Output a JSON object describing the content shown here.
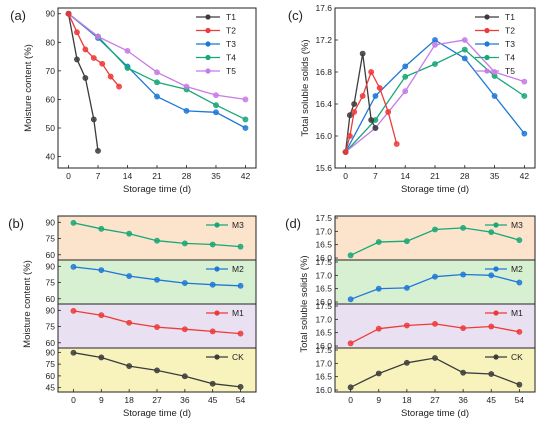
{
  "colors": {
    "T1": "#3c3c3c",
    "T2": "#ee3a3a",
    "T3": "#1e78d8",
    "T4": "#17a877",
    "T5": "#c77be8",
    "M3": "#17a877",
    "M2": "#1e78d8",
    "M1": "#ee3a3a",
    "CK": "#3c3c3c",
    "bgM3": "#fbe3cc",
    "bgM2": "#d8f0d2",
    "bgM1": "#e9e0f1",
    "bgCK": "#f8f3bd"
  },
  "chart_data": [
    {
      "id": "a",
      "panel_label": "(a)",
      "type": "line",
      "xlabel": "Storage time (d)",
      "ylabel": "Moisture content (%)",
      "xticks": [
        0,
        7,
        14,
        21,
        28,
        35,
        42
      ],
      "xlim": [
        -2.5,
        44.5
      ],
      "yticks": [
        40,
        50,
        60,
        70,
        80,
        90
      ],
      "ylim": [
        36,
        92
      ],
      "legend_position": "top-right",
      "series": [
        {
          "name": "T1",
          "x": [
            0,
            2,
            4,
            6,
            7
          ],
          "y": [
            90,
            74,
            67.5,
            53,
            42
          ]
        },
        {
          "name": "T2",
          "x": [
            0,
            2,
            4,
            6,
            8,
            10,
            12
          ],
          "y": [
            90,
            83.5,
            77.5,
            74.5,
            72.5,
            68,
            64.5
          ]
        },
        {
          "name": "T3",
          "x": [
            0,
            7,
            14,
            21,
            28,
            35,
            42
          ],
          "y": [
            90,
            81.5,
            71.5,
            61,
            56,
            55.5,
            50
          ]
        },
        {
          "name": "T4",
          "x": [
            0,
            7,
            14,
            21,
            28,
            35,
            42
          ],
          "y": [
            90,
            82,
            71,
            66,
            63.5,
            58,
            53
          ]
        },
        {
          "name": "T5",
          "x": [
            0,
            7,
            14,
            21,
            28,
            35,
            42
          ],
          "y": [
            90,
            82,
            77,
            69.5,
            64.5,
            61.5,
            60
          ]
        }
      ]
    },
    {
      "id": "c",
      "panel_label": "(c)",
      "type": "line",
      "xlabel": "Storage time (d)",
      "ylabel": "Total soluble solids (%)",
      "xticks": [
        0,
        7,
        14,
        21,
        28,
        35,
        42
      ],
      "xlim": [
        -2.5,
        44.5
      ],
      "yticks": [
        15.6,
        16.0,
        16.4,
        16.8,
        17.2,
        17.6
      ],
      "ylim": [
        15.6,
        17.6
      ],
      "legend_position": "top-right",
      "series": [
        {
          "name": "T1",
          "x": [
            0,
            1,
            2,
            4,
            6,
            7
          ],
          "y": [
            15.8,
            16.26,
            16.4,
            17.03,
            16.2,
            16.1
          ]
        },
        {
          "name": "T2",
          "x": [
            0,
            1,
            2,
            4,
            6,
            8,
            10,
            12
          ],
          "y": [
            15.8,
            16.0,
            16.3,
            16.5,
            16.8,
            16.6,
            16.3,
            15.9
          ]
        },
        {
          "name": "T3",
          "x": [
            0,
            7,
            14,
            21,
            28,
            35,
            42
          ],
          "y": [
            15.8,
            16.5,
            16.87,
            17.2,
            16.97,
            16.5,
            16.03
          ]
        },
        {
          "name": "T4",
          "x": [
            0,
            7,
            14,
            21,
            28,
            35,
            42
          ],
          "y": [
            15.8,
            16.2,
            16.74,
            16.9,
            17.08,
            16.75,
            16.5
          ]
        },
        {
          "name": "T5",
          "x": [
            0,
            7,
            14,
            21,
            28,
            35,
            42
          ],
          "y": [
            15.8,
            16.1,
            16.56,
            17.14,
            17.2,
            16.8,
            16.68
          ]
        }
      ]
    },
    {
      "id": "b",
      "panel_label": "(b)",
      "type": "line",
      "xlabel": "Storage time (d)",
      "ylabel": "Moisture content (%)",
      "xticks": [
        0,
        9,
        18,
        27,
        36,
        45,
        54
      ],
      "xlim": [
        -5,
        59
      ],
      "strips": [
        {
          "name": "M3",
          "ylim": [
            57,
            94
          ],
          "yticks": [
            60,
            75,
            90
          ],
          "x": [
            0,
            9,
            18,
            27,
            36,
            45,
            54
          ],
          "y": [
            89.5,
            84,
            79.5,
            73,
            70.5,
            69.5,
            67.5
          ]
        },
        {
          "name": "M2",
          "ylim": [
            57,
            94
          ],
          "yticks": [
            60,
            75,
            90
          ],
          "x": [
            0,
            9,
            18,
            27,
            36,
            45,
            54
          ],
          "y": [
            89.5,
            86.5,
            81,
            77.5,
            74.5,
            73,
            72
          ]
        },
        {
          "name": "M1",
          "ylim": [
            57,
            94
          ],
          "yticks": [
            60,
            75,
            90
          ],
          "x": [
            0,
            9,
            18,
            27,
            36,
            45,
            54
          ],
          "y": [
            89.5,
            85.5,
            78.5,
            74.5,
            72.5,
            70.5,
            68.5
          ]
        },
        {
          "name": "CK",
          "ylim": [
            42,
            93
          ],
          "yticks": [
            45,
            60,
            75,
            90
          ],
          "x": [
            0,
            9,
            18,
            27,
            36,
            45,
            54
          ],
          "y": [
            89.5,
            83.5,
            72.5,
            67,
            59.5,
            50,
            46
          ]
        }
      ]
    },
    {
      "id": "d",
      "panel_label": "(d)",
      "type": "line",
      "xlabel": "Storage time (d)",
      "ylabel": "Total soluble solids (%)",
      "xticks": [
        0,
        9,
        18,
        27,
        36,
        45,
        54
      ],
      "xlim": [
        -5,
        59
      ],
      "strips": [
        {
          "name": "M3",
          "ylim": [
            16.0,
            17.5
          ],
          "yticks": [
            16.0,
            16.5,
            17.0,
            17.5
          ],
          "x": [
            0,
            9,
            18,
            27,
            36,
            45,
            54
          ],
          "y": [
            16.1,
            16.6,
            16.63,
            17.07,
            17.13,
            16.97,
            16.67
          ]
        },
        {
          "name": "M2",
          "ylim": [
            16.0,
            17.5
          ],
          "yticks": [
            16.0,
            16.5,
            17.0,
            17.5
          ],
          "x": [
            0,
            9,
            18,
            27,
            36,
            45,
            54
          ],
          "y": [
            16.1,
            16.5,
            16.53,
            16.95,
            17.03,
            17.0,
            16.73
          ]
        },
        {
          "name": "M1",
          "ylim": [
            16.0,
            17.5
          ],
          "yticks": [
            16.0,
            16.5,
            17.0,
            17.5
          ],
          "x": [
            0,
            9,
            18,
            27,
            36,
            45,
            54
          ],
          "y": [
            16.1,
            16.65,
            16.77,
            16.83,
            16.67,
            16.73,
            16.53
          ]
        },
        {
          "name": "CK",
          "ylim": [
            16.0,
            17.5
          ],
          "yticks": [
            16.0,
            16.5,
            17.0,
            17.5
          ],
          "x": [
            0,
            9,
            18,
            27,
            36,
            45,
            54
          ],
          "y": [
            16.1,
            16.62,
            17.02,
            17.2,
            16.65,
            16.6,
            16.2
          ]
        }
      ]
    }
  ]
}
